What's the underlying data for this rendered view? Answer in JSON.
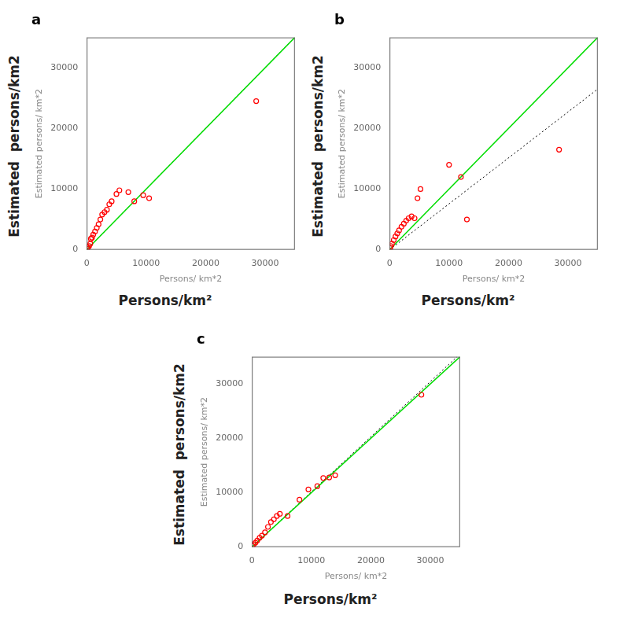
{
  "chart_data": [
    {
      "type": "scatter",
      "title": "a",
      "xlabel": "Persons/ km*2",
      "ylabel": "Estimated persons/ km*2",
      "annotations": [
        "Persons/km²",
        "Estimated  persons/km2"
      ],
      "xlim": [
        0,
        35000
      ],
      "ylim": [
        0,
        35000
      ],
      "xticks": [
        0,
        10000,
        20000,
        30000
      ],
      "yticks": [
        0,
        10000,
        20000,
        30000
      ],
      "grid": false,
      "series": [
        {
          "type": "scatter",
          "color": "red",
          "marker": "circle",
          "x": [
            100,
            200,
            400,
            600,
            700,
            900,
            1100,
            1400,
            1700,
            2000,
            2300,
            2600,
            3000,
            3400,
            3800,
            4200,
            5000,
            5500,
            7000,
            8000,
            9500,
            10500,
            28500
          ],
          "values": [
            200,
            400,
            600,
            1000,
            1800,
            2000,
            2500,
            3000,
            3600,
            4200,
            5000,
            5800,
            6200,
            6600,
            7500,
            8000,
            9200,
            9800,
            9500,
            8000,
            9000,
            8500,
            24500
          ]
        },
        {
          "type": "line",
          "color": "#00dd00",
          "line_style": "solid",
          "x": [
            0,
            35000
          ],
          "values": [
            0,
            35000
          ]
        },
        {
          "type": "line",
          "color": "black",
          "line_style": "dotted",
          "x": [
            0,
            34973.03
          ],
          "values": [
            0,
            35000
          ]
        }
      ]
    },
    {
      "type": "scatter",
      "title": "b",
      "xlabel": "Persons/ km*2",
      "ylabel": "Estimated persons/ km*2",
      "annotations": [
        "Persons/km²",
        "Estimated  persons/km2"
      ],
      "xlim": [
        0,
        35000
      ],
      "ylim": [
        0,
        35000
      ],
      "xticks": [
        0,
        10000,
        20000,
        30000
      ],
      "yticks": [
        0,
        10000,
        20000,
        30000
      ],
      "grid": false,
      "series": [
        {
          "type": "scatter",
          "color": "red",
          "marker": "circle",
          "x": [
            100,
            200,
            400,
            700,
            1000,
            1300,
            1600,
            2000,
            2400,
            2800,
            3200,
            3700,
            4200,
            4700,
            5200,
            10000,
            12000,
            13000,
            28500
          ],
          "values": [
            300,
            600,
            1000,
            1600,
            2200,
            2700,
            3200,
            3800,
            4300,
            4800,
            5200,
            5500,
            5200,
            8500,
            10000,
            14000,
            12000,
            5000,
            16500
          ]
        },
        {
          "type": "line",
          "color": "#00dd00",
          "line_style": "solid",
          "x": [
            0,
            35000
          ],
          "values": [
            0,
            35000
          ]
        },
        {
          "type": "line",
          "color": "black",
          "line_style": "dotted",
          "x": [
            0,
            35000
          ],
          "values": [
            0,
            26492.09
          ]
        }
      ]
    },
    {
      "type": "scatter",
      "title": "c",
      "xlabel": "Persons/ km*2",
      "ylabel": "Estimated persons/ km*2",
      "annotations": [
        "Persons/km²",
        "Estimated  persons/km2"
      ],
      "xlim": [
        0,
        35000
      ],
      "ylim": [
        0,
        35000
      ],
      "xticks": [
        0,
        10000,
        20000,
        30000
      ],
      "yticks": [
        0,
        10000,
        20000,
        30000
      ],
      "grid": false,
      "series": [
        {
          "type": "scatter",
          "color": "red",
          "marker": "circle",
          "x": [
            100,
            300,
            600,
            900,
            1300,
            1700,
            2200,
            2700,
            3200,
            3700,
            4200,
            4700,
            6000,
            8000,
            9500,
            11000,
            12000,
            13000,
            14000,
            28500
          ],
          "values": [
            200,
            500,
            800,
            1200,
            1700,
            2100,
            2700,
            3700,
            4600,
            5100,
            5700,
            6100,
            5700,
            8700,
            10600,
            11200,
            12700,
            12800,
            13200,
            28000
          ]
        },
        {
          "type": "line",
          "color": "#00dd00",
          "line_style": "solid",
          "x": [
            0,
            35000
          ],
          "values": [
            0,
            35000
          ]
        },
        {
          "type": "line",
          "color": "black",
          "line_style": "dotted",
          "x": [
            0,
            34500.85
          ],
          "values": [
            0,
            35000
          ]
        }
      ]
    }
  ]
}
